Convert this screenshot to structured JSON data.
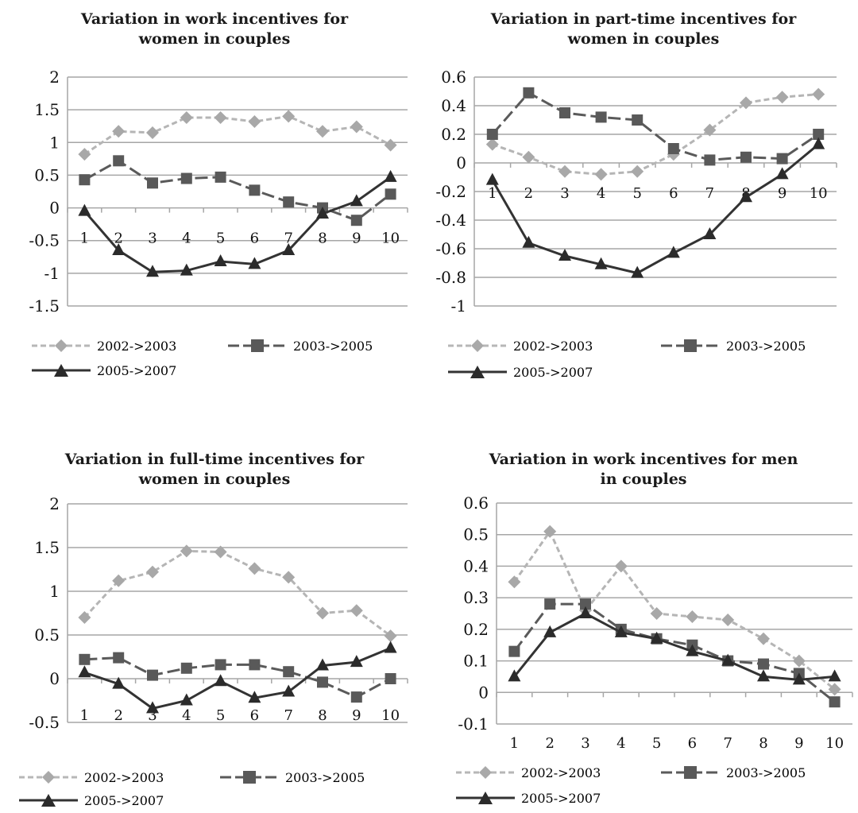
{
  "legend": {
    "s1": "2002->2003",
    "s2": "2003->2005",
    "s3": "2005->2007"
  },
  "chart_data": [
    {
      "type": "line",
      "title": "Variation in work incentives for women in couples",
      "title_line1": "Variation in work incentives for",
      "title_line2": "women in couples",
      "x": [
        1,
        2,
        3,
        4,
        5,
        6,
        7,
        8,
        9,
        10
      ],
      "ylim": [
        -1.5,
        2
      ],
      "yticks": [
        "2",
        "1.5",
        "1",
        "0.5",
        "0",
        "-0.5",
        "-1",
        "-1.5"
      ],
      "grid": true,
      "legend_position": "bottom",
      "series": [
        {
          "name": "2002->2003",
          "values": [
            0.82,
            1.17,
            1.15,
            1.38,
            1.38,
            1.32,
            1.4,
            1.17,
            1.24,
            0.96
          ]
        },
        {
          "name": "2003->2005",
          "values": [
            0.43,
            0.72,
            0.38,
            0.45,
            0.47,
            0.27,
            0.09,
            0.0,
            -0.19,
            0.21
          ]
        },
        {
          "name": "2005->2007",
          "values": [
            -0.05,
            -0.65,
            -0.98,
            -0.96,
            -0.82,
            -0.86,
            -0.65,
            -0.09,
            0.1,
            0.47
          ]
        }
      ]
    },
    {
      "type": "line",
      "title": "Variation in part-time incentives for women in couples",
      "title_line1": "Variation in part-time incentives for",
      "title_line2": "women in couples",
      "x": [
        1,
        2,
        3,
        4,
        5,
        6,
        7,
        8,
        9,
        10
      ],
      "ylim": [
        -1,
        0.6
      ],
      "yticks": [
        "0.6",
        "0.4",
        "0.2",
        "0",
        "-0.2",
        "-0.4",
        "-0.6",
        "-0.8",
        "-1"
      ],
      "grid": true,
      "legend_position": "bottom",
      "series": [
        {
          "name": "2002->2003",
          "values": [
            0.13,
            0.04,
            -0.06,
            -0.08,
            -0.06,
            0.06,
            0.23,
            0.42,
            0.46,
            0.48
          ]
        },
        {
          "name": "2003->2005",
          "values": [
            0.2,
            0.49,
            0.35,
            0.32,
            0.3,
            0.1,
            0.02,
            0.04,
            0.03,
            0.2
          ]
        },
        {
          "name": "2005->2007",
          "values": [
            -0.12,
            -0.56,
            -0.65,
            -0.71,
            -0.77,
            -0.63,
            -0.5,
            -0.24,
            -0.08,
            0.13
          ]
        }
      ]
    },
    {
      "type": "line",
      "title": "Variation in full-time incentives for women in couples",
      "title_line1": "Variation in full-time incentives for",
      "title_line2": "women in couples",
      "x": [
        1,
        2,
        3,
        4,
        5,
        6,
        7,
        8,
        9,
        10
      ],
      "ylim": [
        -0.5,
        2
      ],
      "yticks": [
        "2",
        "1.5",
        "1",
        "0.5",
        "0",
        "-0.5"
      ],
      "grid": true,
      "legend_position": "bottom",
      "series": [
        {
          "name": "2002->2003",
          "values": [
            0.7,
            1.12,
            1.22,
            1.46,
            1.45,
            1.26,
            1.16,
            0.75,
            0.78,
            0.49
          ]
        },
        {
          "name": "2003->2005",
          "values": [
            0.22,
            0.24,
            0.04,
            0.12,
            0.16,
            0.16,
            0.08,
            -0.04,
            -0.21,
            0.0
          ]
        },
        {
          "name": "2005->2007",
          "values": [
            0.07,
            -0.06,
            -0.34,
            -0.25,
            -0.03,
            -0.22,
            -0.15,
            0.15,
            0.19,
            0.35
          ]
        }
      ]
    },
    {
      "type": "line",
      "title": "Variation in work incentives for men in couples",
      "title_line1": "Variation in work incentives for men",
      "title_line2": "in couples",
      "x": [
        1,
        2,
        3,
        4,
        5,
        6,
        7,
        8,
        9,
        10
      ],
      "ylim": [
        -0.1,
        0.6
      ],
      "yticks": [
        "0.6",
        "0.5",
        "0.4",
        "0.3",
        "0.2",
        "0.1",
        "0",
        "-0.1"
      ],
      "grid": true,
      "legend_position": "bottom",
      "series": [
        {
          "name": "2002->2003",
          "values": [
            0.35,
            0.51,
            0.26,
            0.4,
            0.25,
            0.24,
            0.23,
            0.17,
            0.1,
            0.01
          ]
        },
        {
          "name": "2003->2005",
          "values": [
            0.13,
            0.28,
            0.28,
            0.2,
            0.17,
            0.15,
            0.1,
            0.09,
            0.06,
            -0.03
          ]
        },
        {
          "name": "2005->2007",
          "values": [
            0.05,
            0.19,
            0.25,
            0.19,
            0.17,
            0.13,
            0.1,
            0.05,
            0.04,
            0.05
          ]
        }
      ]
    }
  ]
}
